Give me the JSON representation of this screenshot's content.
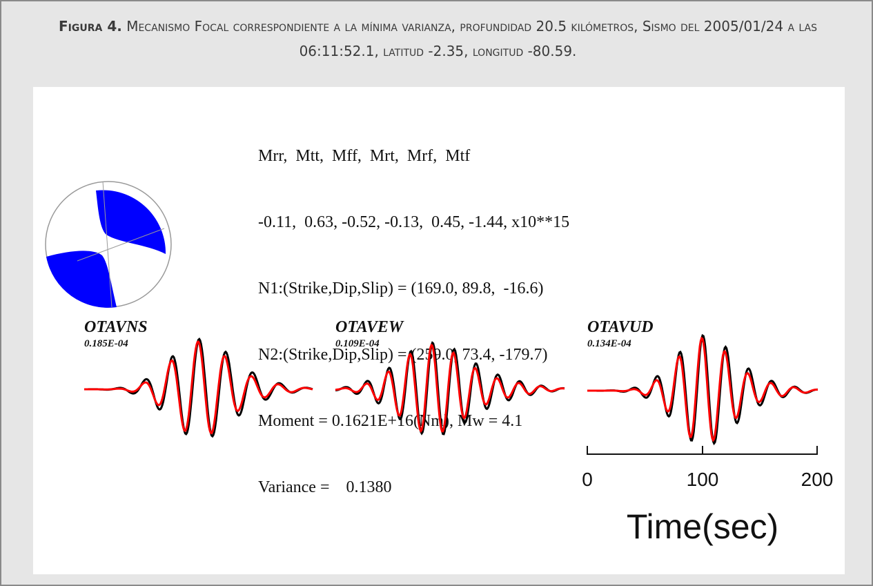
{
  "figure": {
    "label": "Figura 4.",
    "caption": "Mecanismo Focal correspondiente a la mínima varianza, profundidad 20.5 kilómetros, Sismo del 2005/01/24 a las 06:11:52.1, latitud -2.35, longitud -80.59."
  },
  "parameters": {
    "header": "Mrr,  Mtt,  Mff,  Mrt,  Mrf,  Mtf",
    "values": "-0.11,  0.63, -0.52, -0.13,  0.45, -1.44, x10**15",
    "n1": "N1:(Strike,Dip,Slip) = (169.0, 89.8,  -16.6)",
    "n2": "N2:(Strike,Dip,Slip) = (259.0, 73.4, -179.7)",
    "moment": "Moment = 0.1621E+16(Nm), Mw = 4.1",
    "variance": "Variance =    0.1380"
  },
  "beachball": {
    "compressional_color": "#0000ff"
  },
  "stations": [
    {
      "name": "OTAVNS",
      "amplitude": "0.185E-04"
    },
    {
      "name": "OTAVEW",
      "amplitude": "0.109E-04"
    },
    {
      "name": "OTAVUD",
      "amplitude": "0.134E-04"
    }
  ],
  "colors": {
    "observed": "#000000",
    "synthetic": "#ff0000"
  },
  "time_axis": {
    "ticks": [
      "0",
      "100",
      "200"
    ],
    "label": "Time(sec)",
    "range": [
      0,
      200
    ]
  }
}
